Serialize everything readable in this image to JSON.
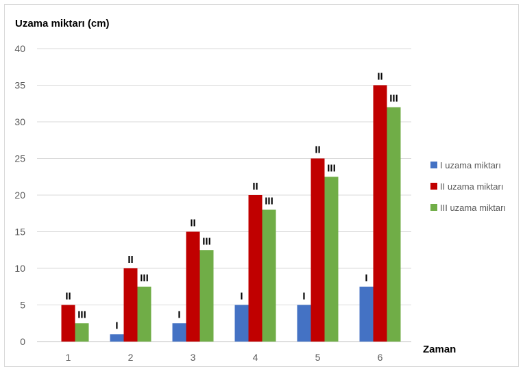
{
  "chart_data": {
    "type": "bar",
    "ylabel": "Uzama miktarı (cm)",
    "xlabel": "Zaman",
    "categories": [
      "1",
      "2",
      "3",
      "4",
      "5",
      "6"
    ],
    "ylim": [
      0,
      40
    ],
    "yticks": [
      0,
      5,
      10,
      15,
      20,
      25,
      30,
      35,
      40
    ],
    "grid": true,
    "legend_position": "right",
    "series": [
      {
        "name": "I uzama miktarı",
        "bar_label": "I",
        "color": "#4472c4",
        "values": [
          0,
          1,
          2.5,
          5,
          5,
          7.5
        ]
      },
      {
        "name": "II uzama miktarı",
        "bar_label": "II",
        "color": "#c00000",
        "values": [
          5,
          10,
          15,
          20,
          25,
          35
        ]
      },
      {
        "name": "III uzama miktarı",
        "bar_label": "III",
        "color": "#70ad47",
        "values": [
          2.5,
          7.5,
          12.5,
          18,
          22.5,
          32
        ]
      }
    ]
  }
}
